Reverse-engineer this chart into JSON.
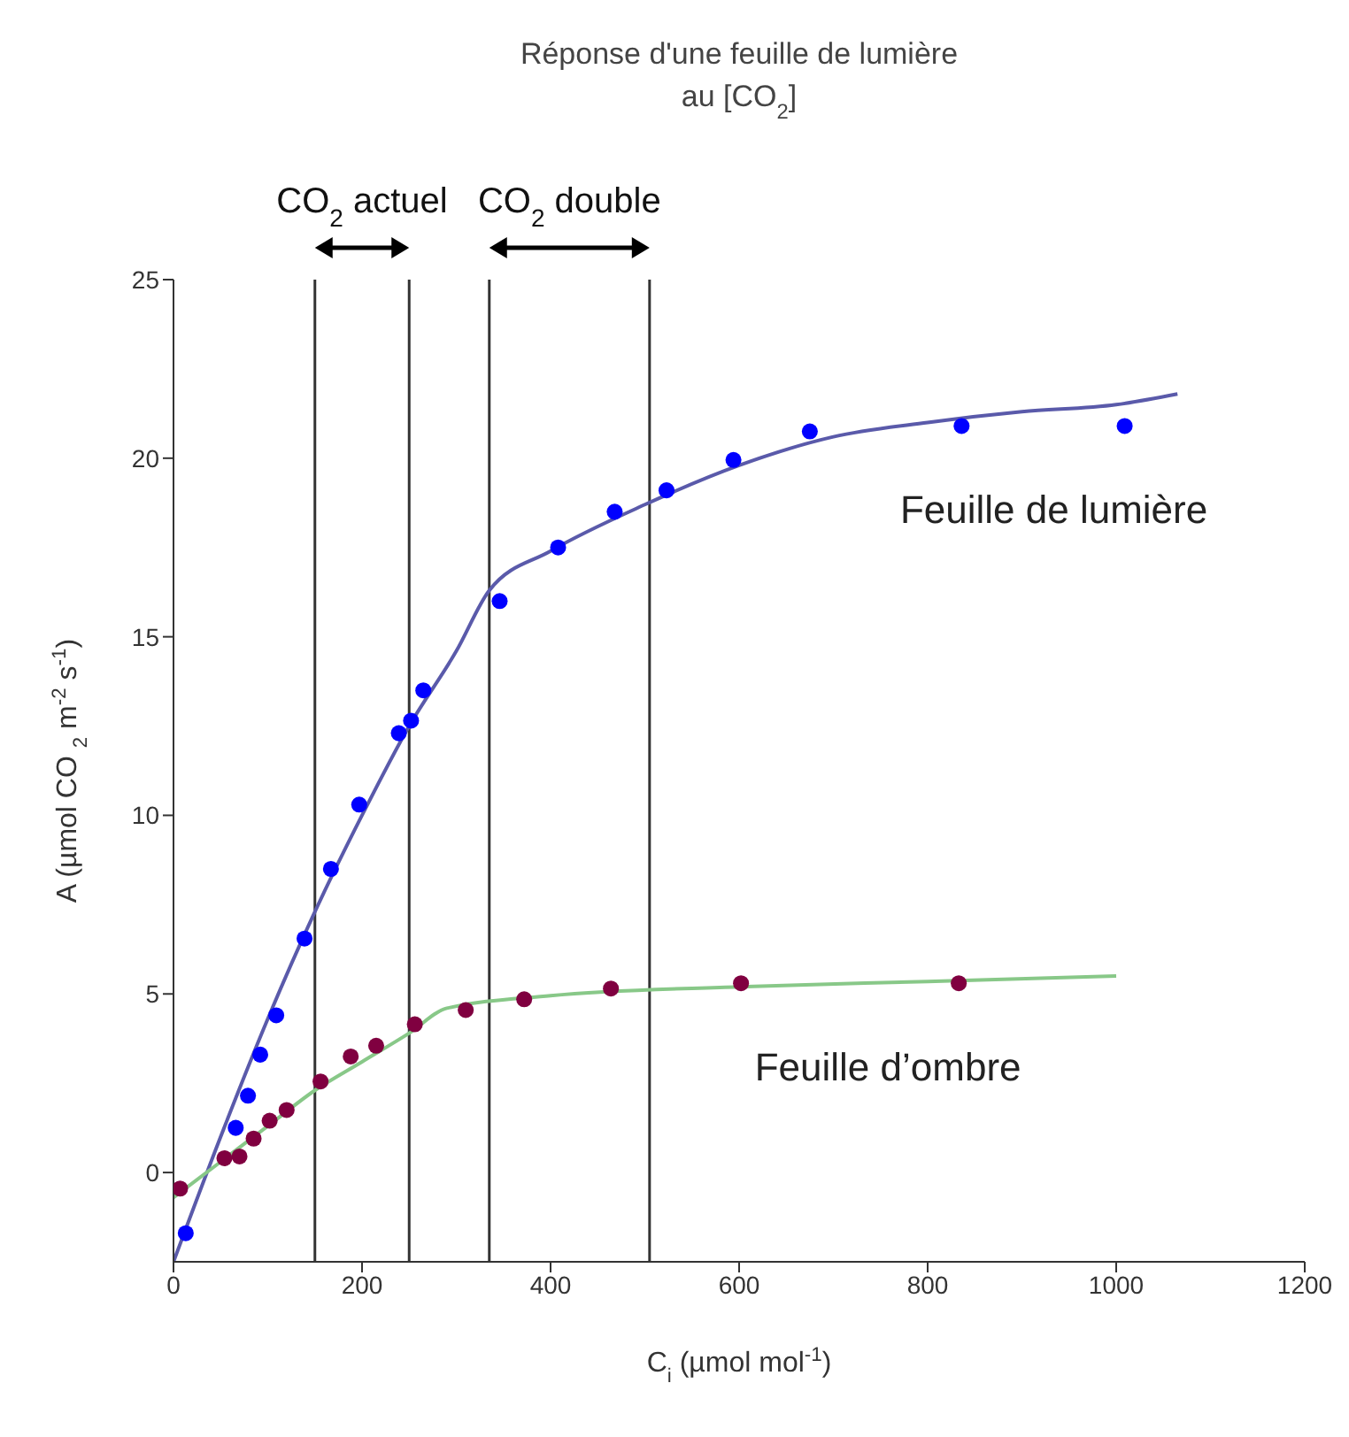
{
  "chart_data": {
    "type": "scatter",
    "title": "Réponse d'une feuille de lumière\nau [CO$_{2}$]",
    "xlabel": "C$_{i}$ (µmol mol$^{-1}$)",
    "ylabel": "A (µmol CO $_{2}$ m$^{-2}$ s$^{-1}$)",
    "xlim": [
      0,
      1200
    ],
    "xticks": [
      0,
      200,
      400,
      600,
      800,
      1000,
      1200
    ],
    "ylim": [
      -2.5,
      25
    ],
    "yticks": [
      0,
      5,
      10,
      15,
      20,
      25
    ],
    "marker": "circle",
    "series": [
      {
        "type": "line",
        "marker": "none",
        "color": "#5a5aaa",
        "x": [
          0,
          50,
          100,
          150,
          200,
          250,
          300,
          335,
          400,
          500,
          600,
          700,
          800,
          900,
          1000,
          1065
        ],
        "values": [
          -2.5,
          1.0,
          4.3,
          7.3,
          10.0,
          12.5,
          14.6,
          16.3,
          17.4,
          18.7,
          19.8,
          20.6,
          21.0,
          21.3,
          21.5,
          21.8
        ]
      },
      {
        "name": "Feuille de lumière",
        "color": "#0000ff",
        "x": [
          13,
          66,
          79,
          92,
          109,
          139,
          167,
          197,
          239,
          252,
          265,
          346,
          408,
          468,
          523,
          594,
          675,
          836,
          1009
        ],
        "values": [
          -1.7,
          1.25,
          2.15,
          3.3,
          4.4,
          6.55,
          8.5,
          10.3,
          12.3,
          12.65,
          13.5,
          16.0,
          17.5,
          18.5,
          19.1,
          19.95,
          20.75,
          20.9,
          20.9
        ]
      },
      {
        "type": "line",
        "marker": "none",
        "color": "#88c888",
        "x": [
          0,
          50,
          100,
          150,
          200,
          250,
          290,
          400,
          600,
          800,
          1000
        ],
        "values": [
          -0.7,
          0.3,
          1.3,
          2.3,
          3.1,
          3.9,
          4.6,
          4.95,
          5.2,
          5.35,
          5.5
        ]
      },
      {
        "name": "Feuille d’ombre",
        "color": "#800040",
        "x": [
          7,
          54,
          70,
          85,
          102,
          120,
          156,
          188,
          215,
          256,
          310,
          372,
          464,
          602,
          833
        ],
        "values": [
          -0.45,
          0.4,
          0.45,
          0.95,
          1.45,
          1.75,
          2.55,
          3.25,
          3.55,
          4.15,
          4.55,
          4.85,
          5.15,
          5.3,
          5.3
        ]
      }
    ],
    "ref_lines": [
      {
        "axis": "x",
        "value": 150,
        "color": "#333333"
      },
      {
        "axis": "x",
        "value": 250,
        "color": "#333333"
      },
      {
        "axis": "x",
        "value": 335,
        "color": "#333333"
      },
      {
        "axis": "x",
        "value": 505,
        "color": "#333333"
      }
    ],
    "annotations": [
      "CO$_{2}$ actuel",
      "CO$_{2}$ double"
    ]
  }
}
